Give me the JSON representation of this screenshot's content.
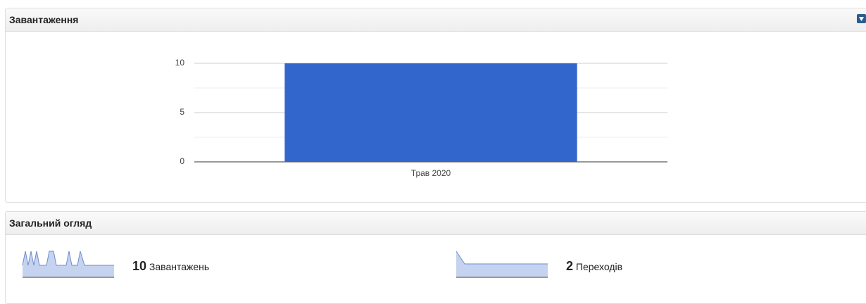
{
  "widgets": [
    {
      "title": "Завантаження"
    },
    {
      "title": "Загальний огляд"
    }
  ],
  "chart_data": {
    "type": "bar",
    "categories": [
      "Трав 2020"
    ],
    "values": [
      10
    ],
    "color": "#3366cc",
    "ylim": [
      0,
      10
    ],
    "yticks": [
      0,
      5,
      10
    ],
    "minor_gridlines": [
      2.5,
      7.5
    ],
    "grid": true
  },
  "overview": [
    {
      "value": 10,
      "label": "Завантажень"
    },
    {
      "value": 2,
      "label": "Переходів"
    }
  ]
}
